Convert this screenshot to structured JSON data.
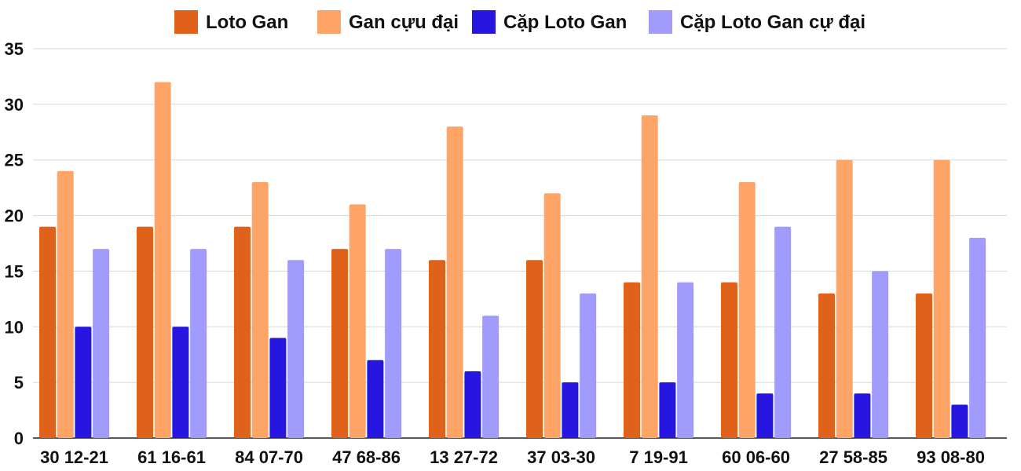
{
  "chart_data": {
    "type": "bar",
    "title": "",
    "xlabel": "",
    "ylabel": "",
    "ylim": [
      0,
      35
    ],
    "yticks": [
      0,
      5,
      10,
      15,
      20,
      25,
      30,
      35
    ],
    "grid": true,
    "legend_position": "top",
    "categories": [
      "30 12-21",
      "61 16-61",
      "84 07-70",
      "47 68-86",
      "13 27-72",
      "37 03-30",
      "7 19-91",
      "60 06-60",
      "27 58-85",
      "93 08-80"
    ],
    "series": [
      {
        "name": "Loto Gan",
        "color": "#e0621a",
        "values": [
          19,
          19,
          19,
          17,
          16,
          16,
          14,
          14,
          13,
          13
        ]
      },
      {
        "name": "Gan cựu đại",
        "color": "#fda466",
        "values": [
          24,
          32,
          23,
          21,
          28,
          22,
          29,
          23,
          25,
          25
        ]
      },
      {
        "name": "Cặp Loto Gan",
        "color": "#2715e0",
        "values": [
          10,
          10,
          9,
          7,
          6,
          5,
          5,
          4,
          4,
          3
        ]
      },
      {
        "name": "Cặp Loto Gan cự đại",
        "color": "#a19cfb",
        "values": [
          17,
          17,
          16,
          17,
          11,
          13,
          14,
          19,
          15,
          18
        ]
      }
    ]
  }
}
